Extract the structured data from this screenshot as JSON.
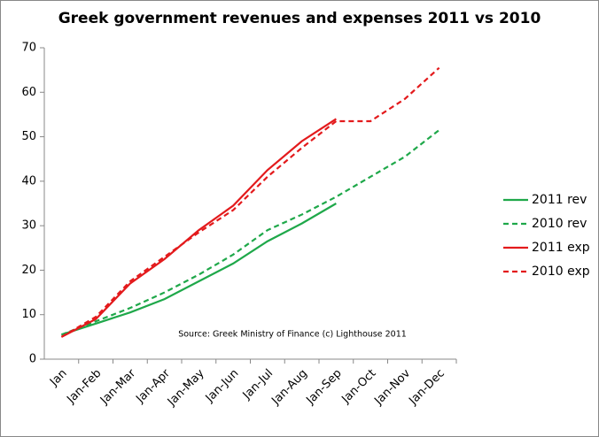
{
  "chart_data": {
    "type": "line",
    "title": "Greek government revenues and expenses 2011 vs 2010",
    "annotation": "Source: Greek Ministry of Finance  (c) Lighthouse 2011",
    "categories": [
      "Jan",
      "Jan-Feb",
      "Jan-Mar",
      "Jan-Apr",
      "Jan-May",
      "Jan-Jun",
      "Jan-Jul",
      "Jan-Aug",
      "Jan-Sep",
      "Jan-Oct",
      "Jan-Nov",
      "Jan-Dec"
    ],
    "series": [
      {
        "name": "2011 rev",
        "color": "#1fa84a",
        "dashed": false,
        "values": [
          5.5,
          8,
          10.5,
          13.5,
          17.5,
          21.5,
          26.5,
          30.5,
          35,
          null,
          null,
          null
        ]
      },
      {
        "name": "2010 rev",
        "color": "#1fa84a",
        "dashed": true,
        "values": [
          5.5,
          8.5,
          11.5,
          15,
          19,
          23.5,
          29,
          32.5,
          36.5,
          41,
          45.5,
          51.5
        ]
      },
      {
        "name": "2011 exp",
        "color": "#e31a1c",
        "dashed": false,
        "values": [
          5,
          9,
          17,
          22.5,
          29,
          34.5,
          42.5,
          49,
          54,
          null,
          null,
          null
        ]
      },
      {
        "name": "2010 exp",
        "color": "#e31a1c",
        "dashed": true,
        "values": [
          5,
          9.5,
          17.5,
          23,
          28.5,
          33.5,
          41,
          47.5,
          53.5,
          53.5,
          58.5,
          65.5
        ]
      }
    ],
    "ylim": [
      0,
      70
    ],
    "yticks": [
      0,
      10,
      20,
      30,
      40,
      50,
      60,
      70
    ],
    "grid": false,
    "legend": "right"
  }
}
